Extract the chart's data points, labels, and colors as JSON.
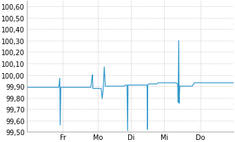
{
  "background_color": "#ffffff",
  "line_color": "#3399cc",
  "grid_color_h": "#cccccc",
  "grid_color_v": "#cccccc",
  "ylim": [
    99.5,
    100.65
  ],
  "ytick_step": 0.1,
  "yticks": [
    99.5,
    99.6,
    99.7,
    99.8,
    99.9,
    100.0,
    100.1,
    100.2,
    100.3,
    100.4,
    100.5,
    100.6
  ],
  "xtick_labels": [
    "Fr",
    "Mo",
    "Di",
    "Mi",
    "Do"
  ],
  "tick_fontsize": 7.0,
  "line_width": 0.9,
  "x": [
    0.0,
    0.01,
    0.02,
    0.03,
    0.04,
    0.05,
    0.06,
    0.07,
    0.08,
    0.09,
    0.1,
    0.11,
    0.12,
    0.13,
    0.14,
    0.15,
    0.155,
    0.16,
    0.162,
    0.165,
    0.17,
    0.18,
    0.19,
    0.2,
    0.21,
    0.22,
    0.23,
    0.24,
    0.25,
    0.26,
    0.27,
    0.28,
    0.29,
    0.3,
    0.31,
    0.315,
    0.318,
    0.32,
    0.33,
    0.34,
    0.35,
    0.36,
    0.365,
    0.37,
    0.375,
    0.38,
    0.39,
    0.4,
    0.41,
    0.42,
    0.43,
    0.44,
    0.45,
    0.46,
    0.47,
    0.48,
    0.485,
    0.488,
    0.49,
    0.495,
    0.5,
    0.51,
    0.52,
    0.53,
    0.54,
    0.55,
    0.56,
    0.57,
    0.58,
    0.582,
    0.583,
    0.585,
    0.59,
    0.6,
    0.61,
    0.62,
    0.63,
    0.635,
    0.64,
    0.65,
    0.66,
    0.67,
    0.68,
    0.69,
    0.7,
    0.71,
    0.72,
    0.73,
    0.732,
    0.735,
    0.737,
    0.74,
    0.745,
    0.75,
    0.755,
    0.76,
    0.77,
    0.78,
    0.79,
    0.8,
    0.81,
    0.812,
    0.815,
    0.82,
    0.83,
    0.84,
    0.85,
    0.86,
    0.87,
    0.88,
    0.89,
    0.9,
    0.91,
    0.92,
    0.93,
    0.94,
    0.95,
    0.96,
    0.97,
    0.98,
    0.99,
    1.0
  ],
  "y": [
    99.89,
    99.89,
    99.89,
    99.89,
    99.89,
    99.89,
    99.89,
    99.89,
    99.89,
    99.89,
    99.89,
    99.89,
    99.89,
    99.89,
    99.89,
    99.89,
    99.89,
    99.97,
    99.56,
    99.89,
    99.89,
    99.89,
    99.89,
    99.89,
    99.89,
    99.89,
    99.89,
    99.89,
    99.89,
    99.89,
    99.89,
    99.89,
    99.89,
    99.89,
    99.89,
    99.97,
    100.0,
    99.88,
    99.88,
    99.88,
    99.88,
    99.88,
    99.79,
    99.88,
    100.07,
    99.9,
    99.9,
    99.9,
    99.9,
    99.9,
    99.9,
    99.9,
    99.9,
    99.9,
    99.9,
    99.91,
    99.91,
    99.51,
    99.91,
    99.91,
    99.91,
    99.91,
    99.91,
    99.91,
    99.91,
    99.91,
    99.91,
    99.91,
    99.91,
    99.91,
    99.52,
    99.91,
    99.92,
    99.92,
    99.92,
    99.92,
    99.92,
    99.93,
    99.93,
    99.93,
    99.93,
    99.93,
    99.93,
    99.93,
    99.93,
    99.93,
    99.93,
    99.92,
    99.76,
    100.3,
    99.75,
    99.9,
    99.9,
    99.9,
    99.9,
    99.9,
    99.9,
    99.9,
    99.9,
    99.9,
    99.93,
    99.93,
    99.93,
    99.93,
    99.93,
    99.93,
    99.93,
    99.93,
    99.93,
    99.93,
    99.93,
    99.93,
    99.93,
    99.93,
    99.93,
    99.93,
    99.93,
    99.93,
    99.93,
    99.93,
    99.93,
    99.93
  ]
}
